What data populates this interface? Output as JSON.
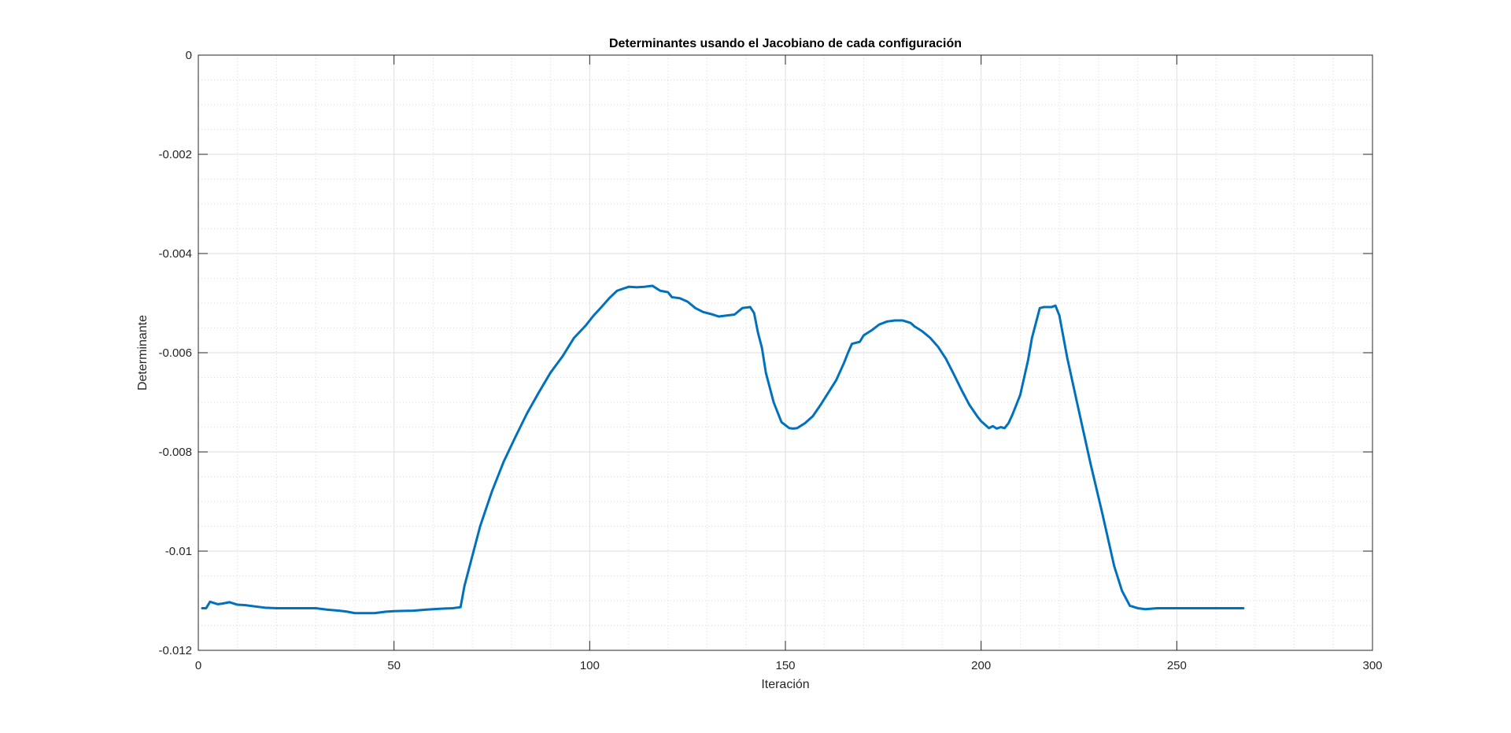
{
  "chart_data": {
    "type": "line",
    "title": "Determinantes usando el Jacobiano de cada configuración",
    "xlabel": "Iteración",
    "ylabel": "Determinante",
    "xlim": [
      0,
      300
    ],
    "ylim": [
      -0.012,
      0
    ],
    "xticks": [
      0,
      50,
      100,
      150,
      200,
      250,
      300
    ],
    "xtick_labels": [
      "0",
      "50",
      "100",
      "150",
      "200",
      "250",
      "300"
    ],
    "yticks": [
      0,
      -0.002,
      -0.004,
      -0.006,
      -0.008,
      -0.01,
      -0.012
    ],
    "ytick_labels": [
      "0",
      "-0.002",
      "-0.004",
      "-0.006",
      "-0.008",
      "-0.01",
      "-0.012"
    ],
    "grid": true,
    "minor_grid": true,
    "line_color": "#0072BD",
    "series": [
      {
        "x": [
          1,
          2,
          3,
          5,
          6,
          8,
          10,
          12,
          15,
          17,
          20,
          25,
          30,
          33,
          36,
          38,
          40,
          45,
          48,
          50,
          55,
          58,
          60,
          62,
          65,
          67,
          68,
          69,
          72,
          75,
          78,
          81,
          84,
          87,
          90,
          93,
          96,
          99,
          101,
          103,
          105,
          107,
          110,
          112,
          114,
          116,
          118,
          120,
          121,
          123,
          125,
          127,
          129,
          131,
          133,
          135,
          137,
          139,
          141,
          142,
          143,
          144,
          145,
          147,
          149,
          151,
          152,
          153,
          155,
          157,
          159,
          161,
          163,
          165,
          166,
          167,
          169,
          170,
          172,
          174,
          176,
          178,
          180,
          182,
          183,
          185,
          187,
          189,
          191,
          193,
          195,
          197,
          199,
          200,
          201,
          202,
          203,
          204,
          205,
          206,
          207,
          208,
          210,
          212,
          213,
          215,
          216,
          218,
          219,
          220,
          222,
          225,
          228,
          231,
          234,
          236,
          238,
          240,
          242,
          245,
          250,
          255,
          260,
          265,
          267
        ],
        "y": [
          -0.01115,
          -0.01115,
          -0.01102,
          -0.01107,
          -0.01106,
          -0.01103,
          -0.01108,
          -0.01109,
          -0.01112,
          -0.01114,
          -0.01115,
          -0.01115,
          -0.01115,
          -0.01118,
          -0.0112,
          -0.01122,
          -0.01125,
          -0.01125,
          -0.01122,
          -0.01121,
          -0.0112,
          -0.01118,
          -0.01117,
          -0.01116,
          -0.01115,
          -0.01113,
          -0.0107,
          -0.0104,
          -0.0095,
          -0.0088,
          -0.0082,
          -0.0077,
          -0.00722,
          -0.0068,
          -0.0064,
          -0.00608,
          -0.0057,
          -0.00545,
          -0.00525,
          -0.00508,
          -0.0049,
          -0.00475,
          -0.00467,
          -0.00468,
          -0.00467,
          -0.00465,
          -0.00475,
          -0.00478,
          -0.00488,
          -0.0049,
          -0.00497,
          -0.0051,
          -0.00518,
          -0.00522,
          -0.00527,
          -0.00525,
          -0.00523,
          -0.0051,
          -0.00508,
          -0.0052,
          -0.0056,
          -0.0059,
          -0.0064,
          -0.007,
          -0.0074,
          -0.00752,
          -0.00753,
          -0.00752,
          -0.00742,
          -0.00728,
          -0.00705,
          -0.0068,
          -0.00655,
          -0.0062,
          -0.006,
          -0.00582,
          -0.00578,
          -0.00565,
          -0.00555,
          -0.00543,
          -0.00537,
          -0.00535,
          -0.00535,
          -0.0054,
          -0.00547,
          -0.00557,
          -0.0057,
          -0.00588,
          -0.00612,
          -0.00643,
          -0.00675,
          -0.00705,
          -0.00728,
          -0.00738,
          -0.00745,
          -0.00752,
          -0.00748,
          -0.00753,
          -0.0075,
          -0.00752,
          -0.00742,
          -0.00725,
          -0.00685,
          -0.00615,
          -0.0057,
          -0.0051,
          -0.00508,
          -0.00508,
          -0.00505,
          -0.00525,
          -0.0061,
          -0.00718,
          -0.00825,
          -0.00925,
          -0.0103,
          -0.0108,
          -0.0111,
          -0.01115,
          -0.01117,
          -0.01115,
          -0.01115,
          -0.01115,
          -0.01115,
          -0.01115,
          -0.01115
        ]
      }
    ]
  }
}
